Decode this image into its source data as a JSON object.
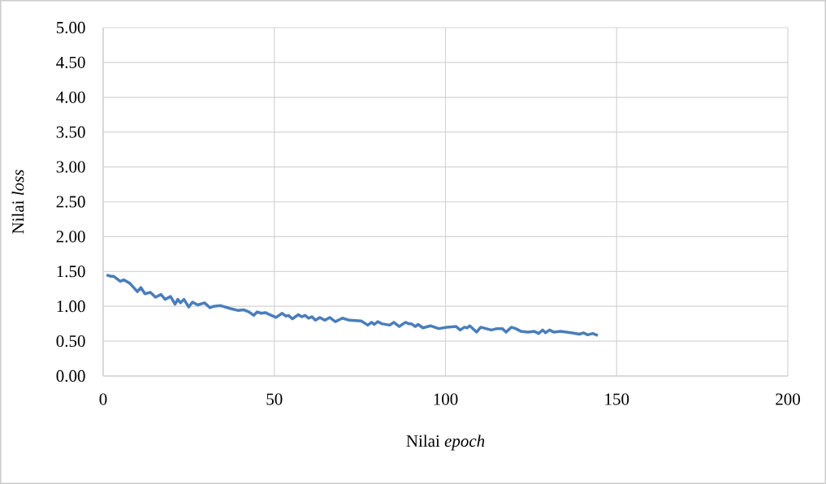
{
  "chart_data": {
    "type": "line",
    "xlabel": "Nilai *epoch*",
    "ylabel": "Nilai *loss*",
    "xlim": [
      0,
      200
    ],
    "xticks": [
      0,
      50,
      100,
      150,
      200
    ],
    "ylim": [
      0,
      5
    ],
    "yticks": [
      {
        "value": 0,
        "label": "0.00"
      },
      {
        "value": 0.5,
        "label": "0.50"
      },
      {
        "value": 1,
        "label": "1.00"
      },
      {
        "value": 1.5,
        "label": "1.50"
      },
      {
        "value": 2,
        "label": "2.00"
      },
      {
        "value": 2.5,
        "label": "2.50"
      },
      {
        "value": 3,
        "label": "3.00"
      },
      {
        "value": 3.5,
        "label": "3.50"
      },
      {
        "value": 4,
        "label": "4.00"
      },
      {
        "value": 4.5,
        "label": "4.50"
      },
      {
        "value": 5,
        "label": "5.00"
      }
    ],
    "grid": true,
    "marker": "none",
    "line_style": "solid",
    "x": [
      1,
      2.3,
      3.1,
      5,
      6,
      7.8,
      10,
      11,
      12.2,
      13.8,
      15.3,
      16.9,
      18.1,
      19.7,
      21,
      21.8,
      22.6,
      23.6,
      25,
      26.1,
      27.6,
      29.6,
      31.2,
      32.3,
      34.3,
      37,
      39.5,
      41,
      42.6,
      44,
      45,
      46.2,
      47.4,
      48.2,
      50.5,
      52.3,
      53.3,
      54.1,
      55.3,
      57,
      58,
      59,
      60,
      61,
      62,
      63.3,
      64.7,
      66.2,
      67.8,
      69.9,
      71.9,
      75.4,
      77.3,
      78.4,
      79.2,
      80.2,
      81.4,
      83.7,
      84.9,
      86.5,
      88.3,
      89.3,
      90,
      91.2,
      92,
      93.4,
      95.6,
      98,
      100.4,
      103.1,
      104.3,
      105.5,
      106.3,
      107.1,
      109.1,
      110.3,
      111.8,
      113.4,
      115,
      116.6,
      117.7,
      119.2,
      120.5,
      122.1,
      124.1,
      126,
      127.2,
      128.4,
      129.2,
      130.4,
      131.6,
      133.6,
      136.7,
      139.1,
      140.3,
      141.5,
      143,
      144.5
    ],
    "series": [
      {
        "color": "#4a7ebb",
        "values": [
          1.45,
          1.43,
          1.43,
          1.36,
          1.38,
          1.33,
          1.21,
          1.27,
          1.18,
          1.2,
          1.13,
          1.17,
          1.1,
          1.14,
          1.03,
          1.1,
          1.05,
          1.1,
          0.99,
          1.06,
          1.02,
          1.05,
          0.98,
          1,
          1.01,
          0.97,
          0.94,
          0.95,
          0.92,
          0.87,
          0.92,
          0.9,
          0.91,
          0.89,
          0.84,
          0.9,
          0.86,
          0.87,
          0.82,
          0.88,
          0.85,
          0.87,
          0.83,
          0.85,
          0.8,
          0.84,
          0.8,
          0.84,
          0.78,
          0.83,
          0.8,
          0.79,
          0.73,
          0.77,
          0.74,
          0.78,
          0.75,
          0.73,
          0.77,
          0.71,
          0.77,
          0.75,
          0.75,
          0.71,
          0.74,
          0.69,
          0.72,
          0.68,
          0.7,
          0.71,
          0.66,
          0.7,
          0.69,
          0.72,
          0.63,
          0.7,
          0.68,
          0.66,
          0.68,
          0.68,
          0.63,
          0.7,
          0.68,
          0.64,
          0.63,
          0.64,
          0.61,
          0.66,
          0.62,
          0.66,
          0.63,
          0.64,
          0.62,
          0.6,
          0.62,
          0.59,
          0.61,
          0.58
        ]
      }
    ]
  }
}
